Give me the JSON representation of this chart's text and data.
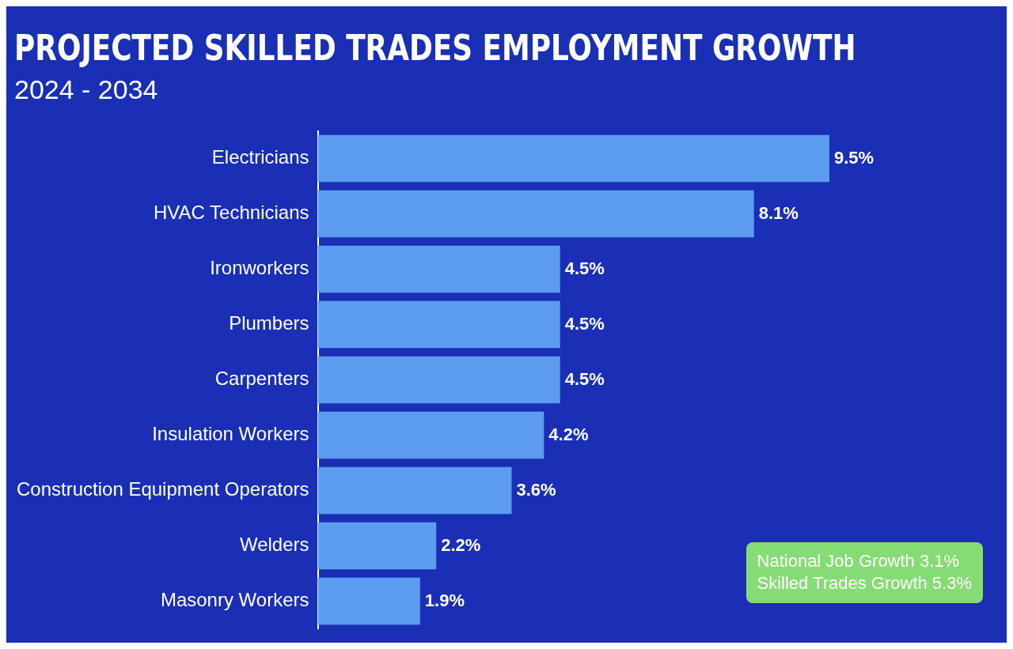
{
  "chart_data": {
    "type": "bar",
    "orientation": "horizontal",
    "title": "PROJECTED SKILLED TRADES EMPLOYMENT GROWTH",
    "subtitle": "2024 - 2034",
    "categories": [
      "Electricians",
      "HVAC Technicians",
      "Ironworkers",
      "Plumbers",
      "Carpenters",
      "Insulation Workers",
      "Construction Equipment Operators",
      "Welders",
      "Masonry Workers"
    ],
    "values": [
      9.5,
      8.1,
      4.5,
      4.5,
      4.5,
      4.2,
      3.6,
      2.2,
      1.9
    ],
    "value_labels": [
      "9.5%",
      "8.1%",
      "4.5%",
      "4.5%",
      "4.5%",
      "4.2%",
      "3.6%",
      "2.2%",
      "1.9%"
    ],
    "color": "#5b9cf0",
    "legend": false,
    "annotations": [
      "National Job Growth 3.1%",
      "Skilled Trades Growth 5.3%"
    ]
  }
}
